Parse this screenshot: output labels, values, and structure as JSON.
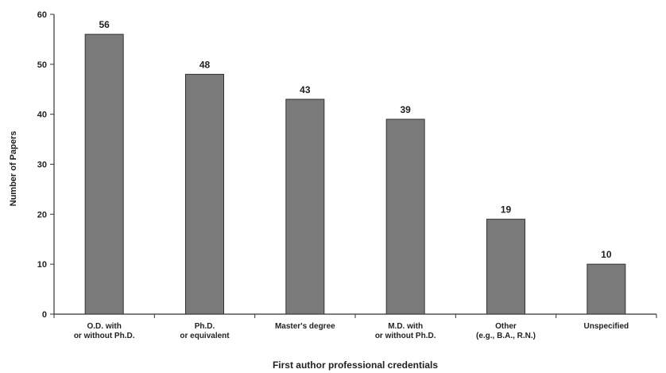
{
  "chart_data": {
    "type": "bar",
    "categories": [
      [
        "O.D. with",
        "or without Ph.D."
      ],
      [
        "Ph.D.",
        "or equivalent"
      ],
      [
        "Master's degree"
      ],
      [
        "M.D. with",
        "or without Ph.D."
      ],
      [
        "Other",
        "(e.g., B.A., R.N.)"
      ],
      [
        "Unspecified"
      ]
    ],
    "values": [
      56,
      48,
      43,
      39,
      19,
      10
    ],
    "title": "",
    "xlabel": "First author professional credentials",
    "ylabel": "Number of Papers",
    "ylim": [
      0,
      60
    ],
    "yticks": [
      0,
      10,
      20,
      30,
      40,
      50,
      60
    ],
    "grid": false,
    "bar_color": "#7a7a7a",
    "bar_edge_color": "#333333"
  }
}
